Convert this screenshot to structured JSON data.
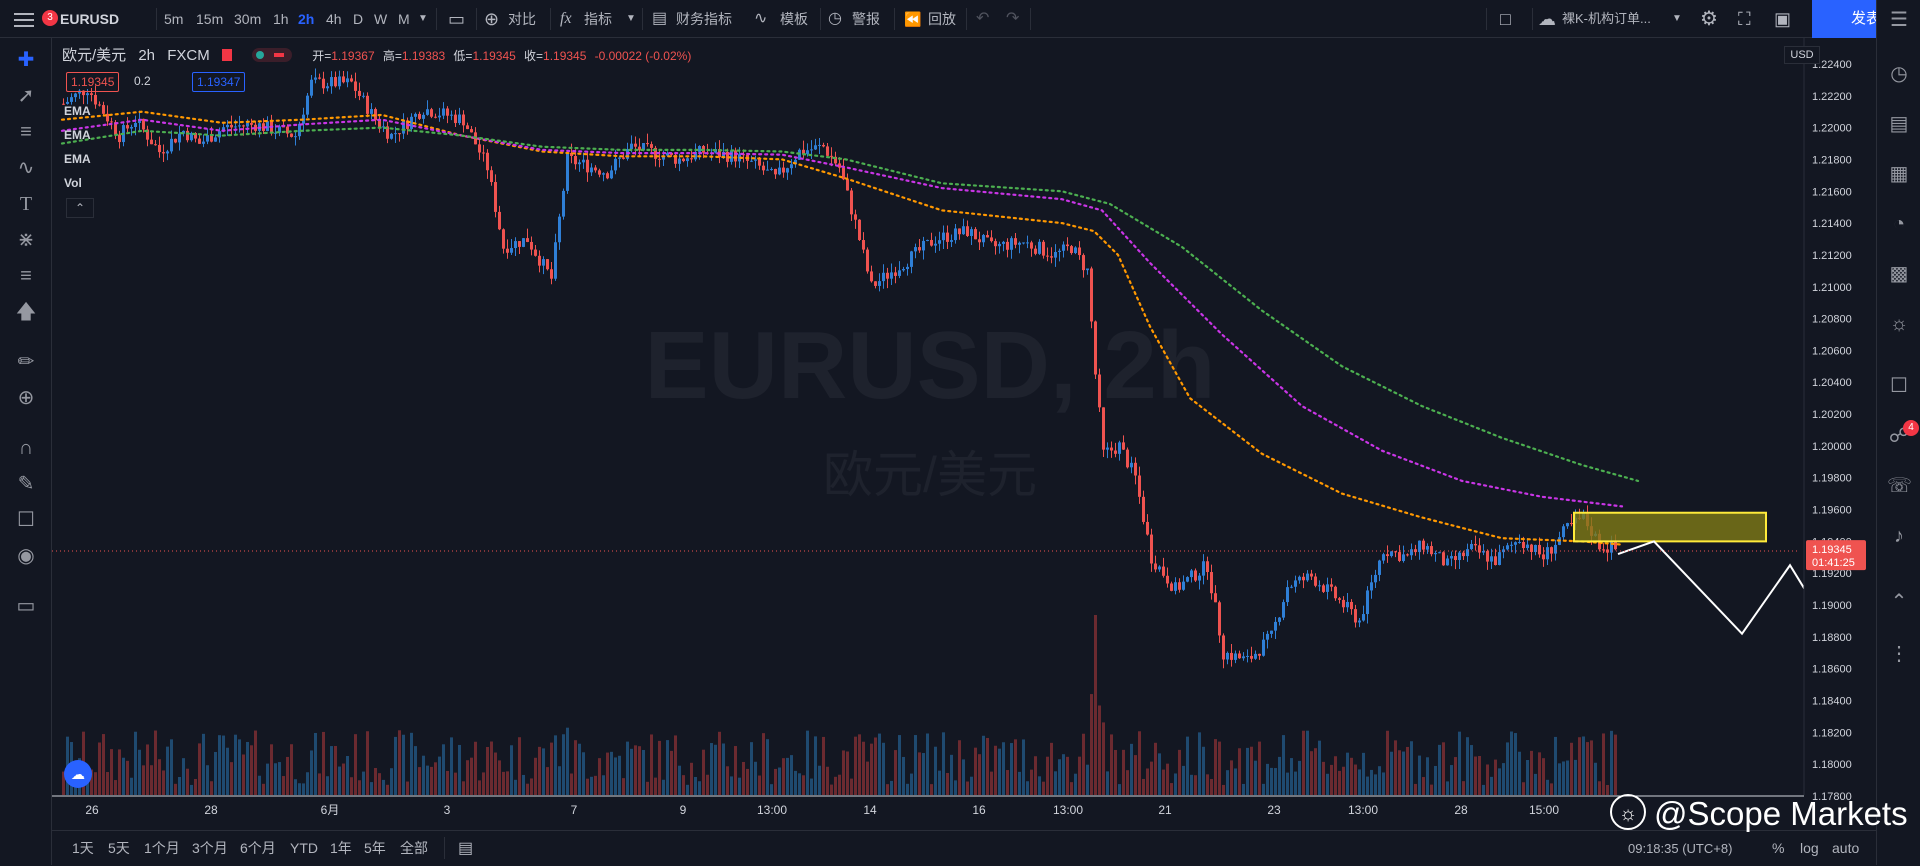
{
  "topbar": {
    "menu_badge": "3",
    "symbol": "EURUSD",
    "intervals": [
      "5m",
      "15m",
      "30m",
      "1h",
      "2h",
      "4h",
      "D",
      "W",
      "M"
    ],
    "active_interval": "2h",
    "compare_label": "对比",
    "indicators_label": "指标",
    "financials_label": "财务指标",
    "templates_label": "模板",
    "alerts_label": "警报",
    "replay_label": "回放",
    "layout_name": "裸K-机构订单...",
    "publish_label": "发表"
  },
  "legend": {
    "pair": "欧元/美元",
    "interval": "2h",
    "source": "FXCM",
    "open_label": "开",
    "open": "1.19367",
    "high_label": "高",
    "high": "1.19383",
    "low_label": "低",
    "low": "1.19345",
    "close_label": "收",
    "close": "1.19345",
    "change": "-0.00022 (-0.02%)",
    "bid": "1.19345",
    "spread": "0.2",
    "ask": "1.19347"
  },
  "indicators": [
    "EMA",
    "EMA",
    "EMA",
    "Vol"
  ],
  "watermark": {
    "symbol_line": "EURUSD, 2h",
    "name_line": "欧元/美元"
  },
  "price_axis": {
    "currency": "USD",
    "current_price": "1.19345",
    "countdown": "01:41:25"
  },
  "time_axis": {
    "labels": [
      "26",
      "28",
      "6月",
      "3",
      "7",
      "9",
      "13:00",
      "14",
      "16",
      "13:00",
      "21",
      "23",
      "13:00",
      "28",
      "15:00"
    ]
  },
  "bottombar": {
    "ranges": [
      "1天",
      "5天",
      "1个月",
      "3个月",
      "6个月",
      "YTD",
      "1年",
      "5年",
      "全部"
    ],
    "clock": "09:18:35 (UTC+8)",
    "pct_label": "%",
    "log_label": "log",
    "auto_label": "auto"
  },
  "brand": "@Scope Markets",
  "colors": {
    "up": "#2f7fd6",
    "down": "#ef5350",
    "ema_fast": "#ff9800",
    "ema_mid": "#c935e6",
    "ema_slow": "#4caf50",
    "zone_fill": "#807a16",
    "zone_stroke": "#ffeb3b",
    "accent": "#2962ff"
  },
  "chart_data": {
    "type": "candlestick",
    "title": "EURUSD, 2h",
    "ylim": [
      1.178,
      1.2245
    ],
    "y_ticks": [
      1.224,
      1.222,
      1.22,
      1.218,
      1.216,
      1.214,
      1.212,
      1.21,
      1.208,
      1.206,
      1.204,
      1.202,
      1.2,
      1.198,
      1.196,
      1.194,
      1.192,
      1.19,
      1.188,
      1.186,
      1.184,
      1.182,
      1.18,
      1.178
    ],
    "y_tick_labels": [
      "1.22400",
      "1.22200",
      "1.22000",
      "1.21800",
      "1.21600",
      "1.21400",
      "1.21200",
      "1.21000",
      "1.20800",
      "1.20600",
      "1.20400",
      "1.20200",
      "1.20000",
      "1.19800",
      "1.19600",
      "1.19400",
      "1.19200",
      "1.19000",
      "1.18800",
      "1.18600",
      "1.18400",
      "1.18200",
      "1.18000",
      "1.17800"
    ],
    "close_path": [
      [
        0,
        1.2215
      ],
      [
        6,
        1.2225
      ],
      [
        14,
        1.2195
      ],
      [
        18,
        1.2205
      ],
      [
        24,
        1.2185
      ],
      [
        30,
        1.2198
      ],
      [
        34,
        1.219
      ],
      [
        40,
        1.22
      ],
      [
        48,
        1.2202
      ],
      [
        58,
        1.2195
      ],
      [
        62,
        1.2228
      ],
      [
        72,
        1.2228
      ],
      [
        78,
        1.2205
      ],
      [
        82,
        1.2195
      ],
      [
        90,
        1.2212
      ],
      [
        100,
        1.2205
      ],
      [
        106,
        1.2175
      ],
      [
        110,
        1.2125
      ],
      [
        116,
        1.213
      ],
      [
        122,
        1.2105
      ],
      [
        126,
        1.218
      ],
      [
        136,
        1.2172
      ],
      [
        142,
        1.2188
      ],
      [
        154,
        1.218
      ],
      [
        160,
        1.2185
      ],
      [
        168,
        1.2182
      ],
      [
        174,
        1.2175
      ],
      [
        178,
        1.2168
      ],
      [
        184,
        1.2185
      ],
      [
        190,
        1.2188
      ],
      [
        194,
        1.2175
      ],
      [
        198,
        1.214
      ],
      [
        202,
        1.21
      ],
      [
        210,
        1.2115
      ],
      [
        218,
        1.213
      ],
      [
        226,
        1.2135
      ],
      [
        232,
        1.2125
      ],
      [
        240,
        1.2128
      ],
      [
        248,
        1.212
      ],
      [
        252,
        1.2125
      ],
      [
        256,
        1.211
      ],
      [
        258,
        1.2045
      ],
      [
        260,
        1.1995
      ],
      [
        264,
        1.2
      ],
      [
        268,
        1.198
      ],
      [
        272,
        1.193
      ],
      [
        278,
        1.191
      ],
      [
        286,
        1.1925
      ],
      [
        290,
        1.187
      ],
      [
        296,
        1.1865
      ],
      [
        302,
        1.188
      ],
      [
        306,
        1.1912
      ],
      [
        312,
        1.1918
      ],
      [
        318,
        1.1905
      ],
      [
        324,
        1.189
      ],
      [
        330,
        1.1935
      ],
      [
        336,
        1.193
      ],
      [
        340,
        1.1938
      ],
      [
        346,
        1.1925
      ],
      [
        352,
        1.1935
      ],
      [
        358,
        1.1928
      ],
      [
        364,
        1.1942
      ],
      [
        370,
        1.193
      ],
      [
        376,
        1.1948
      ],
      [
        380,
        1.1955
      ],
      [
        384,
        1.1938
      ],
      [
        388,
        1.1935
      ]
    ],
    "ema_fast": [
      [
        0,
        1.2205
      ],
      [
        20,
        1.221
      ],
      [
        40,
        1.2203
      ],
      [
        60,
        1.2205
      ],
      [
        80,
        1.2208
      ],
      [
        100,
        1.2195
      ],
      [
        120,
        1.2185
      ],
      [
        140,
        1.2182
      ],
      [
        160,
        1.2182
      ],
      [
        180,
        1.218
      ],
      [
        196,
        1.2168
      ],
      [
        220,
        1.2148
      ],
      [
        250,
        1.214
      ],
      [
        258,
        1.2135
      ],
      [
        264,
        1.212
      ],
      [
        272,
        1.2075
      ],
      [
        282,
        1.203
      ],
      [
        300,
        1.1995
      ],
      [
        320,
        1.197
      ],
      [
        340,
        1.1955
      ],
      [
        360,
        1.1942
      ],
      [
        380,
        1.194
      ],
      [
        390,
        1.1938
      ]
    ],
    "ema_mid": [
      [
        0,
        1.2198
      ],
      [
        20,
        1.2205
      ],
      [
        40,
        1.2198
      ],
      [
        60,
        1.2202
      ],
      [
        80,
        1.2205
      ],
      [
        100,
        1.2195
      ],
      [
        120,
        1.2186
      ],
      [
        140,
        1.2184
      ],
      [
        160,
        1.2184
      ],
      [
        180,
        1.2183
      ],
      [
        196,
        1.2175
      ],
      [
        220,
        1.2162
      ],
      [
        250,
        1.2155
      ],
      [
        260,
        1.2148
      ],
      [
        272,
        1.2115
      ],
      [
        290,
        1.207
      ],
      [
        310,
        1.2025
      ],
      [
        330,
        1.1997
      ],
      [
        350,
        1.1978
      ],
      [
        370,
        1.1968
      ],
      [
        390,
        1.1962
      ]
    ],
    "ema_slow": [
      [
        0,
        1.219
      ],
      [
        20,
        1.2198
      ],
      [
        40,
        1.2195
      ],
      [
        60,
        1.2198
      ],
      [
        80,
        1.22
      ],
      [
        100,
        1.2195
      ],
      [
        120,
        1.2188
      ],
      [
        140,
        1.2186
      ],
      [
        160,
        1.2186
      ],
      [
        180,
        1.2185
      ],
      [
        196,
        1.218
      ],
      [
        220,
        1.2165
      ],
      [
        250,
        1.216
      ],
      [
        262,
        1.2152
      ],
      [
        280,
        1.2125
      ],
      [
        300,
        1.2085
      ],
      [
        320,
        1.205
      ],
      [
        340,
        1.2025
      ],
      [
        360,
        1.2005
      ],
      [
        380,
        1.1988
      ],
      [
        394,
        1.1978
      ]
    ],
    "zone": {
      "y_top": 1.1958,
      "y_bottom": 1.194,
      "x_start": 378,
      "x_end": 426
    },
    "projection": [
      [
        389,
        1.1932
      ],
      [
        398,
        1.194
      ],
      [
        420,
        1.1882
      ],
      [
        432,
        1.1925
      ],
      [
        462,
        1.1802
      ],
      [
        452,
        1.181
      ]
    ],
    "current_price": 1.19345
  }
}
